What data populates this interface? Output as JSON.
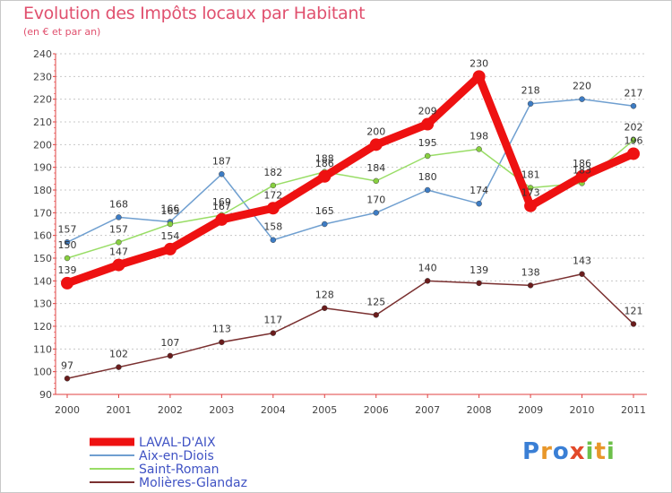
{
  "chart_data": {
    "type": "line",
    "title": "Evolution des Impôts locaux par Habitant",
    "subtitle": "(en € et par an)",
    "xlabel": "",
    "ylabel": "",
    "x": [
      "2000",
      "2001",
      "2002",
      "2003",
      "2004",
      "2005",
      "2006",
      "2007",
      "2008",
      "2009",
      "2010",
      "2011"
    ],
    "ylim": [
      90,
      240
    ],
    "yticks": [
      90,
      100,
      110,
      120,
      130,
      140,
      150,
      160,
      170,
      180,
      190,
      200,
      210,
      220,
      230,
      240
    ],
    "grid": "horizontal dashed",
    "legend_position": "bottom-left",
    "series": [
      {
        "name": "LAVAL-D'AIX",
        "color": "#ee1111",
        "values": [
          139,
          147,
          154,
          167,
          172,
          186,
          200,
          209,
          230,
          173,
          186,
          196
        ]
      },
      {
        "name": "Aix-en-Diois",
        "color": "#6f9fd0",
        "values": [
          157,
          168,
          166,
          187,
          158,
          165,
          170,
          180,
          174,
          218,
          220,
          217
        ]
      },
      {
        "name": "Saint-Roman",
        "color": "#99dd66",
        "values": [
          150,
          157,
          165,
          169,
          182,
          188,
          184,
          195,
          198,
          181,
          183,
          202
        ]
      },
      {
        "name": "Molières-Glandaz",
        "color": "#7a3030",
        "values": [
          97,
          102,
          107,
          113,
          117,
          128,
          125,
          140,
          139,
          138,
          143,
          121
        ]
      }
    ]
  },
  "logo": {
    "letters": [
      "P",
      "r",
      "o",
      "x",
      "i",
      "t",
      "i"
    ],
    "colors": [
      "#3a7fd5",
      "#e8972a",
      "#3a7fd5",
      "#e24a2a",
      "#6cc04a",
      "#e8972a",
      "#6cc04a"
    ]
  }
}
